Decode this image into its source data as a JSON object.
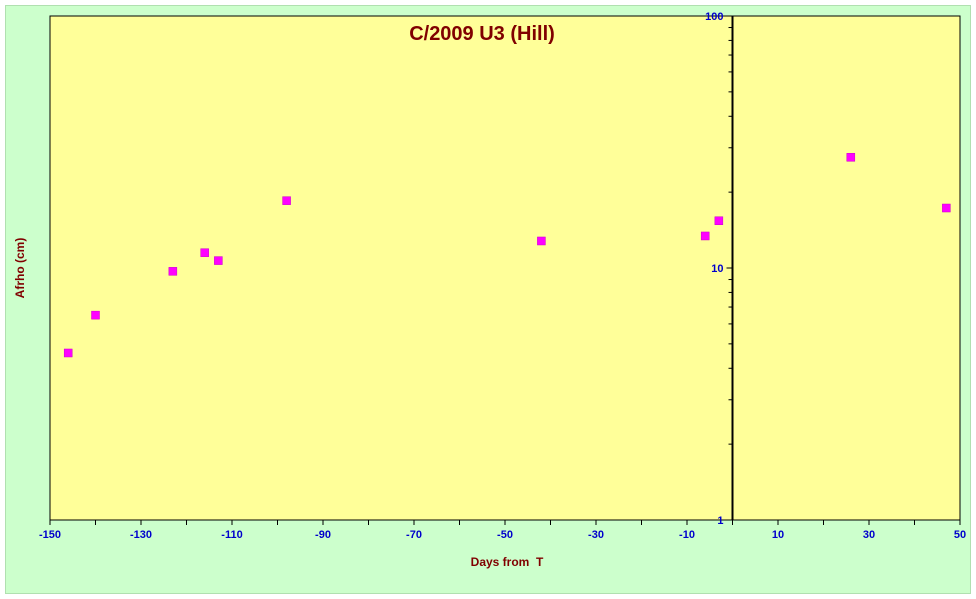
{
  "chart_data": {
    "type": "scatter",
    "title": "C/2009 U3 (Hill)",
    "xlabel": "Days from  T",
    "ylabel": "Afrho (cm)",
    "xlim": [
      -150,
      50
    ],
    "ylim": [
      1,
      100
    ],
    "y_scale": "log",
    "x_ticks": [
      -150,
      -130,
      -110,
      -90,
      -70,
      -50,
      -30,
      -10,
      10,
      30,
      50
    ],
    "y_tick_labels": [
      {
        "value": 1,
        "label": "1"
      },
      {
        "value": 10,
        "label": "10"
      },
      {
        "value": 100,
        "label": "100"
      }
    ],
    "reference_line_x": 0,
    "grid": false,
    "colors": {
      "plot_background": "#ffff99",
      "outer_background": "#ccffcc",
      "marker": "#ff00ff",
      "title": "#800000",
      "tick_labels": "#0000cc"
    },
    "series": [
      {
        "marker": "square",
        "points": [
          {
            "x": -146,
            "y": 4.6
          },
          {
            "x": -140,
            "y": 6.5
          },
          {
            "x": -123,
            "y": 9.7
          },
          {
            "x": -116,
            "y": 11.5
          },
          {
            "x": -113,
            "y": 10.7
          },
          {
            "x": -98,
            "y": 18.5
          },
          {
            "x": -42,
            "y": 12.8
          },
          {
            "x": -6,
            "y": 13.4
          },
          {
            "x": -3,
            "y": 15.4
          },
          {
            "x": 26,
            "y": 27.5
          },
          {
            "x": 47,
            "y": 17.3
          }
        ]
      }
    ]
  }
}
